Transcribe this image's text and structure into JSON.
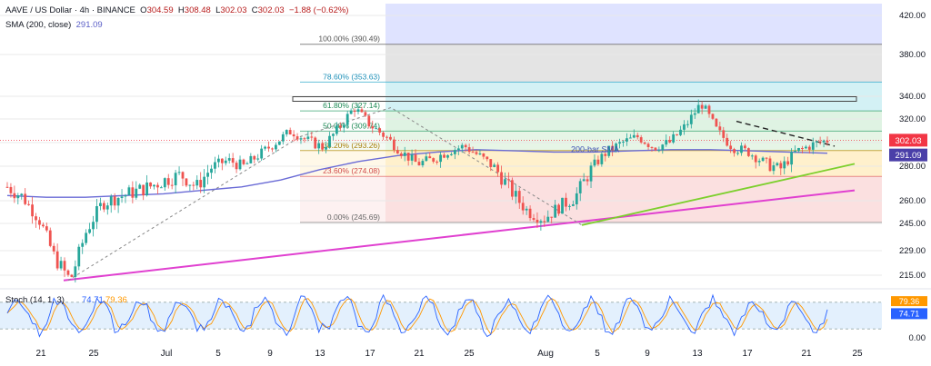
{
  "header": {
    "symbol_line": "AAVE / US Dollar · 4h · BINANCE",
    "o_label": "O",
    "o_value": "304.59",
    "h_label": "H",
    "h_value": "308.48",
    "l_label": "L",
    "l_value": "302.03",
    "c_label": "C",
    "c_value": "302.03",
    "change": "−1.88 (−0.62%)",
    "sma_label": "SMA (200, close)",
    "sma_value": "291.09"
  },
  "price_axis": {
    "ticks": [
      "420.00",
      "380.00",
      "340.00",
      "320.00",
      "300.00",
      "280.00",
      "260.00",
      "245.00",
      "229.00",
      "215.00"
    ],
    "tick_values": [
      420,
      380,
      340,
      320,
      300,
      280,
      260,
      245,
      229,
      215
    ],
    "price_badge": "302.03",
    "sma_badge": "291.09",
    "price_badge_color": "#f23645",
    "sma_badge_color": "#4a3fa8"
  },
  "fib_levels": [
    {
      "label": "100.00% (390.49)",
      "value": 390.49
    },
    {
      "label": "78.60% (353.63)",
      "value": 353.63
    },
    {
      "label": "61.80% (327.14)",
      "value": 327.14
    },
    {
      "label": "50.00% (309.74)",
      "value": 309.74
    },
    {
      "label": "38.20% (293.26)",
      "value": 293.26
    },
    {
      "label": "23.60% (274.08)",
      "value": 274.08
    },
    {
      "label": "0.00% (245.69)",
      "value": 245.69
    }
  ],
  "annotations": {
    "sma_text": "200-bar SMA"
  },
  "stoch": {
    "label": "Stoch (14, 1, 3)",
    "k_value": "74.71",
    "d_value": "79.36",
    "k_color": "#2962ff",
    "d_color": "#ff9800",
    "axis_zero": "0.00",
    "badge_k": "74.71",
    "badge_d": "79.36"
  },
  "x_axis": {
    "labels": [
      "21",
      "25",
      "Jul",
      "5",
      "9",
      "13",
      "17",
      "21",
      "25",
      "Aug",
      "5",
      "9",
      "13",
      "17",
      "21",
      "25"
    ]
  },
  "chart_data": {
    "type": "candlestick",
    "series": [
      {
        "name": "AAVE / US Dollar",
        "close_approx": [
          268,
          262,
          248,
          225,
          212,
          240,
          258,
          262,
          265,
          268,
          272,
          275,
          268,
          280,
          285,
          280,
          290,
          300,
          310,
          302,
          296,
          312,
          330,
          315,
          305,
          292,
          282,
          286,
          293,
          297,
          288,
          278,
          265,
          253,
          248,
          256,
          262,
          278,
          292,
          300,
          305,
          296,
          300,
          314,
          334,
          310,
          296,
          292,
          283,
          278,
          292,
          298,
          302
        ]
      },
      {
        "name": "SMA (200, close)",
        "values_approx": [
          263,
          262,
          262,
          263,
          264,
          266,
          268,
          272,
          278,
          284,
          289,
          292,
          294,
          293,
          292,
          292,
          293,
          294,
          294,
          293,
          292,
          291
        ]
      }
    ],
    "ylim": [
      200,
      430
    ],
    "fib_range": [
      245.69,
      390.49
    ],
    "horizontal_resistance": 338,
    "last_close": 302.03
  }
}
